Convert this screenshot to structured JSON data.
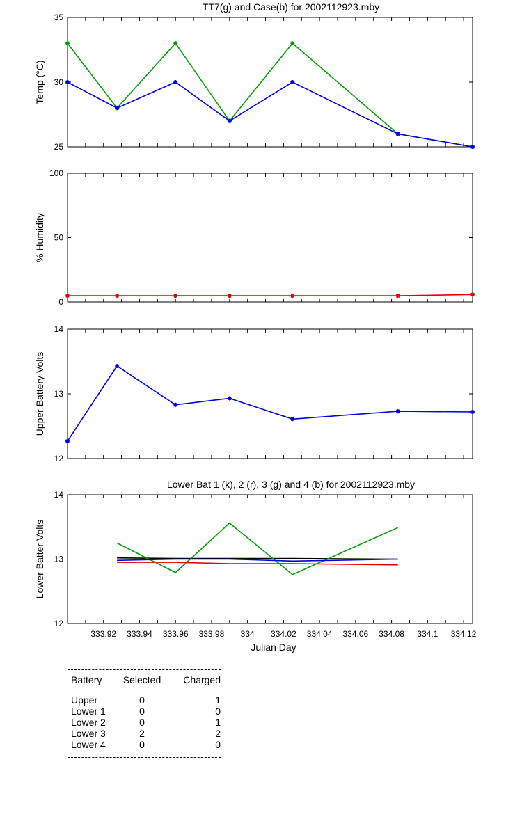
{
  "chart_data": [
    {
      "type": "line",
      "title": "TT7(g) and Case(b) for 2002112923.mby",
      "xlabel": "",
      "ylabel": "Temp  (°C)",
      "xlim": [
        333.9,
        334.125
      ],
      "ylim": [
        25,
        35
      ],
      "yticks": [
        25,
        30,
        35
      ],
      "grid": false,
      "series": [
        {
          "color": "#00a000",
          "marker": "*",
          "x": [
            333.9,
            333.9275,
            333.96,
            333.99,
            334.025,
            334.0835,
            334.125
          ],
          "y": [
            33,
            28,
            33,
            27,
            33,
            26,
            25
          ]
        },
        {
          "color": "#0000e0",
          "marker": "*",
          "x": [
            333.9,
            333.9275,
            333.96,
            333.99,
            334.025,
            334.0835,
            334.125
          ],
          "y": [
            30,
            28,
            30,
            27,
            30,
            26,
            25
          ]
        }
      ]
    },
    {
      "type": "line",
      "title": "",
      "xlabel": "",
      "ylabel": "% Humidity",
      "xlim": [
        333.9,
        334.125
      ],
      "ylim": [
        0,
        100
      ],
      "yticks": [
        0,
        50,
        100
      ],
      "grid": false,
      "series": [
        {
          "color": "#e00000",
          "marker": "*",
          "x": [
            333.9,
            333.9275,
            333.96,
            333.99,
            334.025,
            334.0835,
            334.125
          ],
          "y": [
            4.8,
            4.8,
            4.8,
            4.8,
            4.8,
            4.8,
            5.8
          ]
        }
      ]
    },
    {
      "type": "line",
      "title": "",
      "xlabel": "",
      "ylabel": "Upper Battery Volts",
      "xlim": [
        333.9,
        334.125
      ],
      "ylim": [
        12,
        14
      ],
      "yticks": [
        12,
        13,
        14
      ],
      "grid": false,
      "series": [
        {
          "color": "#0000e0",
          "marker": "*",
          "x": [
            333.9,
            333.9275,
            333.96,
            333.99,
            334.025,
            334.0835,
            334.125
          ],
          "y": [
            12.27,
            13.43,
            12.83,
            12.93,
            12.61,
            12.73,
            12.72
          ]
        }
      ]
    },
    {
      "type": "line",
      "title": "Lower Bat 1 (k), 2 (r), 3 (g) and 4 (b) for 2002112923.mby",
      "xlabel": "Julian Day",
      "ylabel": "Lower Batter Volts",
      "xlim": [
        333.9,
        334.125
      ],
      "ylim": [
        12,
        14
      ],
      "yticks": [
        12,
        13,
        14
      ],
      "xticks": [
        333.92,
        333.94,
        333.96,
        333.98,
        334,
        334.02,
        334.04,
        334.06,
        334.08,
        334.1,
        334.12
      ],
      "xticklabels": [
        "333.92",
        "333.94",
        "333.96",
        "333.98",
        "334",
        "334.02",
        "334.04",
        "334.06",
        "334.08",
        "334.1",
        "334.12"
      ],
      "grid": false,
      "series": [
        {
          "color": "#000000",
          "marker": "",
          "x": [
            333.9275,
            333.96,
            333.99,
            334.025,
            334.0835
          ],
          "y": [
            13.02,
            13.01,
            13.01,
            13.01,
            13.0
          ]
        },
        {
          "color": "#e00000",
          "marker": "",
          "x": [
            333.9275,
            333.96,
            333.99,
            334.025,
            334.0835
          ],
          "y": [
            12.95,
            12.95,
            12.93,
            12.93,
            12.91
          ]
        },
        {
          "color": "#00a000",
          "marker": "",
          "x": [
            333.9275,
            333.96,
            333.99,
            334.025,
            334.0835
          ],
          "y": [
            13.25,
            12.79,
            13.56,
            12.76,
            13.49
          ]
        },
        {
          "color": "#0000e0",
          "marker": "",
          "x": [
            333.9275,
            333.96,
            333.99,
            334.025,
            334.0835
          ],
          "y": [
            12.98,
            13.0,
            13.0,
            12.97,
            13.0
          ]
        }
      ]
    }
  ],
  "battery_table": {
    "headers": [
      "Battery",
      "Selected",
      "Charged"
    ],
    "rows": [
      [
        "Upper",
        "0",
        "1"
      ],
      [
        "Lower 1",
        "0",
        "0"
      ],
      [
        "Lower 2",
        "0",
        "1"
      ],
      [
        "Lower 3",
        "2",
        "2"
      ],
      [
        "Lower 4",
        "0",
        "0"
      ]
    ]
  }
}
